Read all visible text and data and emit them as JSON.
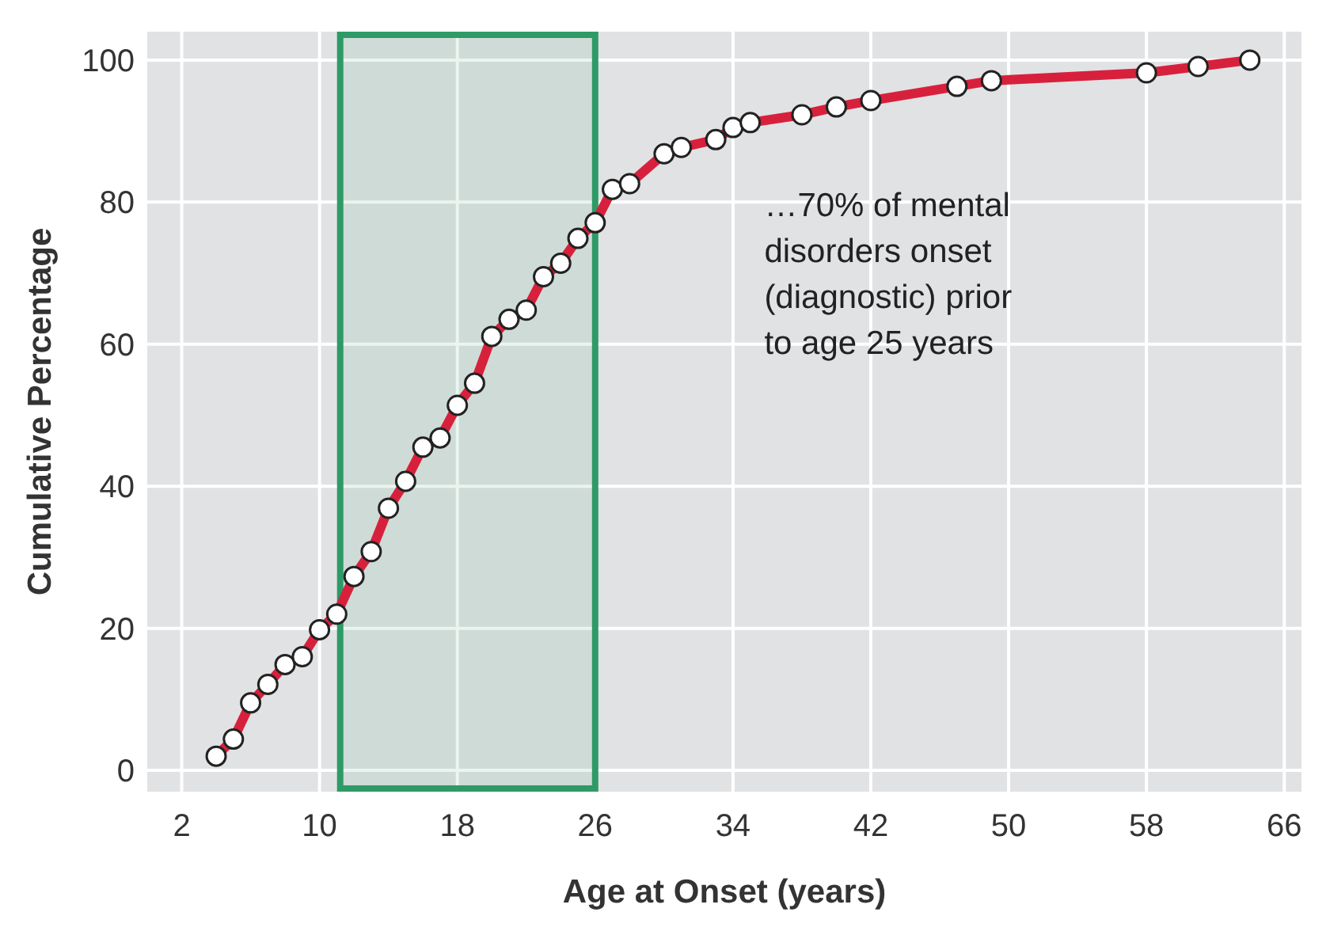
{
  "chart_data": {
    "type": "line",
    "xlabel": "Age at Onset (years)",
    "ylabel": "Cumulative Percentage",
    "x": [
      4,
      5,
      6,
      7,
      8,
      9,
      10,
      11,
      12,
      13,
      14,
      15,
      16,
      17,
      18,
      19,
      20,
      21,
      22,
      23,
      24,
      25,
      26,
      27,
      28,
      30,
      31,
      33,
      34,
      35,
      38,
      40,
      42,
      47,
      49,
      58,
      61,
      64
    ],
    "series": [
      {
        "color": "#d7213c",
        "values": [
          2,
          4.4,
          9.5,
          12.1,
          14.9,
          16,
          19.8,
          22,
          27.3,
          30.8,
          36.9,
          40.7,
          45.5,
          46.8,
          51.4,
          54.5,
          61.1,
          63.5,
          64.8,
          69.5,
          71.4,
          74.9,
          77.1,
          81.8,
          82.6,
          86.8,
          87.7,
          88.8,
          90.5,
          91.2,
          92.3,
          93.4,
          94.3,
          96.3,
          97.1,
          98.2,
          99.1,
          100
        ]
      }
    ],
    "xlim": [
      0,
      67
    ],
    "ylim": [
      -3,
      104
    ],
    "xticks": [
      2,
      10,
      18,
      26,
      34,
      42,
      50,
      58,
      66
    ],
    "yticks": [
      0,
      20,
      40,
      60,
      80,
      100
    ],
    "grid": true,
    "marker": "circle",
    "line_style": "solid",
    "bands": [
      {
        "axis": "x",
        "from": 11.2,
        "to": 26,
        "color": "#2e9a66"
      }
    ],
    "annotations": [
      "…70% of mental disorders onset (diagnostic) prior to age 25 years"
    ]
  }
}
